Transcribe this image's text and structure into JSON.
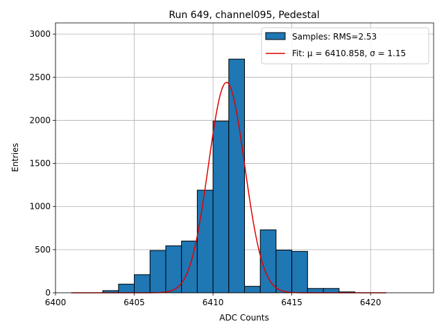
{
  "chart_data": {
    "type": "bar",
    "title": "Run 649, channel095, Pedestal",
    "xlabel": "ADC Counts",
    "ylabel": "Entries",
    "xlim": [
      6400,
      6424
    ],
    "ylim": [
      0,
      3130
    ],
    "grid": true,
    "legend_position": "top-right",
    "x_ticks": [
      6400,
      6405,
      6410,
      6415,
      6420
    ],
    "x_tick_labels": [
      "6400",
      "6405",
      "6410",
      "6415",
      "6420"
    ],
    "y_ticks": [
      0,
      500,
      1000,
      1500,
      2000,
      2500,
      3000
    ],
    "y_tick_labels": [
      "0",
      "500",
      "1000",
      "1500",
      "2000",
      "2500",
      "3000"
    ],
    "bin_width": 1,
    "bins": [
      {
        "x": 6403,
        "count": 25
      },
      {
        "x": 6404,
        "count": 100
      },
      {
        "x": 6405,
        "count": 210
      },
      {
        "x": 6406,
        "count": 490
      },
      {
        "x": 6407,
        "count": 545
      },
      {
        "x": 6408,
        "count": 600
      },
      {
        "x": 6409,
        "count": 1190
      },
      {
        "x": 6410,
        "count": 1990
      },
      {
        "x": 6411,
        "count": 2710
      },
      {
        "x": 6412,
        "count": 75
      },
      {
        "x": 6413,
        "count": 730
      },
      {
        "x": 6414,
        "count": 495
      },
      {
        "x": 6415,
        "count": 480
      },
      {
        "x": 6416,
        "count": 50
      },
      {
        "x": 6417,
        "count": 50
      },
      {
        "x": 6418,
        "count": 10
      }
    ],
    "series": [
      {
        "name": "Samples: RMS=2.53",
        "kind": "histogram",
        "color": "#1f77b4"
      },
      {
        "name": "Fit: μ = 6410.858, σ = 1.15",
        "kind": "line",
        "color": "#e00000",
        "mu": 6410.858,
        "sigma": 1.15,
        "amplitude": 2440,
        "x_range": [
          6401,
          6421
        ]
      }
    ]
  }
}
